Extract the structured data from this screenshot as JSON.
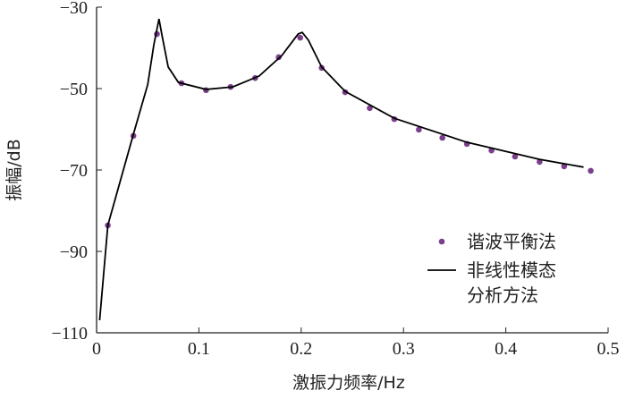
{
  "chart_data": {
    "type": "line",
    "xlabel": "激振力频率/Hz",
    "ylabel": "振幅/dB",
    "xlim": [
      0,
      0.5
    ],
    "ylim": [
      -110,
      -30
    ],
    "xticks": [
      0,
      0.1,
      0.2,
      0.3,
      0.4,
      0.5
    ],
    "yticks": [
      {
        "value": -30,
        "label": "−30"
      },
      {
        "value": -50,
        "label": "−50"
      },
      {
        "value": -70,
        "label": "−70"
      },
      {
        "value": -90,
        "label": "−90"
      },
      {
        "value": -110,
        "label": "−110"
      }
    ],
    "legend": "lower right",
    "series": [
      {
        "name": "谐波平衡法",
        "type": "scatter",
        "color": "#7b3f8c",
        "x": [
          0.011,
          0.036,
          0.059,
          0.083,
          0.107,
          0.131,
          0.155,
          0.178,
          0.199,
          0.22,
          0.243,
          0.267,
          0.291,
          0.315,
          0.338,
          0.362,
          0.386,
          0.409,
          0.433,
          0.457,
          0.483
        ],
        "values": [
          -83.6,
          -61.6,
          -36.6,
          -48.7,
          -50.4,
          -49.6,
          -47.4,
          -42.3,
          -37.5,
          -44.9,
          -50.9,
          -54.8,
          -57.5,
          -60.1,
          -62.1,
          -63.6,
          -65.2,
          -66.7,
          -68.0,
          -69.1,
          -70.2
        ]
      },
      {
        "name": "非线性模态分析方法",
        "type": "line",
        "color": "#000000",
        "x": [
          0.003,
          0.011,
          0.036,
          0.05,
          0.056,
          0.061,
          0.064,
          0.07,
          0.08,
          0.107,
          0.133,
          0.159,
          0.181,
          0.197,
          0.201,
          0.207,
          0.22,
          0.243,
          0.291,
          0.362,
          0.433,
          0.476
        ],
        "values": [
          -106.9,
          -83.6,
          -61.2,
          -49,
          -39.2,
          -32.9,
          -37,
          -44.7,
          -48.5,
          -50.2,
          -49.6,
          -46.9,
          -41.9,
          -36.6,
          -36.2,
          -38.1,
          -44.7,
          -50.7,
          -57.3,
          -63.2,
          -67.4,
          -69.3
        ]
      }
    ]
  }
}
